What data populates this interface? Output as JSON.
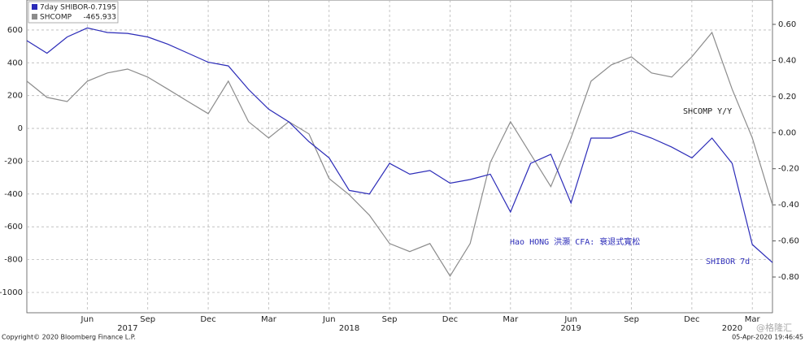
{
  "chart_data": {
    "type": "line",
    "x": [
      "2017-03",
      "2017-04",
      "2017-05",
      "2017-06",
      "2017-07",
      "2017-08",
      "2017-09",
      "2017-10",
      "2017-11",
      "2017-12",
      "2018-01",
      "2018-02",
      "2018-03",
      "2018-04",
      "2018-05",
      "2018-06",
      "2018-07",
      "2018-08",
      "2018-09",
      "2018-10",
      "2018-11",
      "2018-12",
      "2019-01",
      "2019-02",
      "2019-03",
      "2019-04",
      "2019-05",
      "2019-06",
      "2019-07",
      "2019-08",
      "2019-09",
      "2019-10",
      "2019-11",
      "2019-12",
      "2020-01",
      "2020-02",
      "2020-03",
      "2020-04"
    ],
    "xlim": [
      "2017-03",
      "2020-04"
    ],
    "xticks": [
      {
        "value": "2017-06",
        "label": "Jun"
      },
      {
        "value": "2017-09",
        "label": "Sep"
      },
      {
        "value": "2017-12",
        "label": "Dec"
      },
      {
        "value": "2018-03",
        "label": "Mar"
      },
      {
        "value": "2018-06",
        "label": "Jun"
      },
      {
        "value": "2018-09",
        "label": "Sep"
      },
      {
        "value": "2018-12",
        "label": "Dec"
      },
      {
        "value": "2019-03",
        "label": "Mar"
      },
      {
        "value": "2019-06",
        "label": "Jun"
      },
      {
        "value": "2019-09",
        "label": "Sep"
      },
      {
        "value": "2019-12",
        "label": "Dec"
      },
      {
        "value": "2020-03",
        "label": "Mar"
      }
    ],
    "year_labels": [
      {
        "value": "2017-08",
        "label": "2017"
      },
      {
        "value": "2018-07",
        "label": "2018"
      },
      {
        "value": "2019-06",
        "label": "2019"
      },
      {
        "value": "2020-02",
        "label": "2020"
      }
    ],
    "ylim": [
      -1124,
      783
    ],
    "yticks": [
      600,
      400,
      200,
      0,
      -200,
      -400,
      -600,
      -800,
      -1000
    ],
    "y2lim": [
      -0.998,
      0.735
    ],
    "y2ticks": [
      {
        "value": 0.6,
        "label": "0.60"
      },
      {
        "value": 0.4,
        "label": "0.40"
      },
      {
        "value": 0.2,
        "label": "0.20"
      },
      {
        "value": 0,
        "label": "0.00"
      },
      {
        "value": -0.2,
        "label": "-0.20"
      },
      {
        "value": -0.4,
        "label": "-0.40"
      },
      {
        "value": -0.6,
        "label": "-0.60"
      },
      {
        "value": -0.8,
        "label": "-0.80"
      }
    ],
    "grid": true,
    "series": [
      {
        "name": "7day SHIBOR",
        "last_value": -0.7195,
        "color": "#2b2bb8",
        "axis": "y2",
        "values": [
          0.51,
          0.44,
          0.53,
          0.58,
          0.555,
          0.55,
          0.53,
          0.49,
          0.44,
          0.39,
          0.37,
          0.24,
          0.13,
          0.06,
          -0.05,
          -0.14,
          -0.32,
          -0.34,
          -0.17,
          -0.23,
          -0.21,
          -0.28,
          -0.26,
          -0.23,
          -0.44,
          -0.17,
          -0.12,
          -0.39,
          -0.03,
          -0.03,
          0.01,
          -0.03,
          -0.08,
          -0.14,
          -0.03,
          -0.17,
          -0.62,
          -0.72
        ]
      },
      {
        "name": "SHCOMP",
        "last_value": -465.933,
        "color": "#8c8c8c",
        "axis": "y",
        "values": [
          288,
          189,
          164,
          288,
          338,
          362,
          313,
          239,
          164,
          90,
          288,
          41,
          -58,
          41,
          -34,
          -306,
          -405,
          -529,
          -702,
          -751,
          -702,
          -900,
          -702,
          -207,
          41,
          -157,
          -355,
          -58,
          288,
          387,
          437,
          338,
          313,
          437,
          585,
          239,
          -58,
          -466
        ]
      }
    ],
    "annotations": [
      {
        "text": "SHCOMP Y/Y",
        "color": "#222222"
      },
      {
        "text": "Hao HONG 洪灝 CFA: 衰退式寬松",
        "color": "#2b2bb8"
      },
      {
        "text": "SHIBOR 7d",
        "color": "#2b2bb8"
      }
    ],
    "footer_left": "Copyright© 2020 Bloomberg Finance L.P.",
    "footer_right": "05-Apr-2020 19:46:45",
    "watermark": "@格隆汇"
  }
}
